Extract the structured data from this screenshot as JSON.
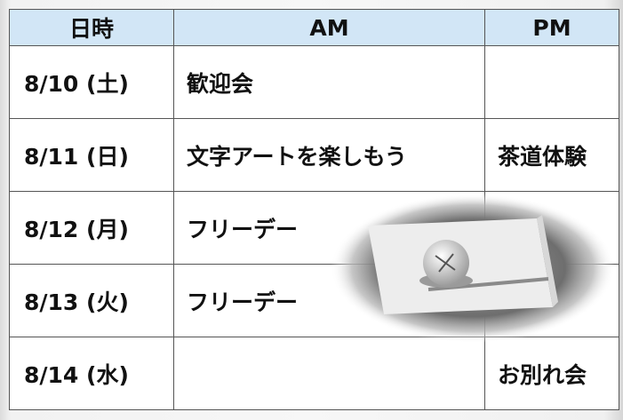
{
  "table": {
    "header": [
      "日時",
      "AM",
      "PM"
    ],
    "rows": [
      {
        "date": "8/10 (土)",
        "am": "歓迎会"
      },
      {
        "date": "8/11 (日)",
        "am": "文字アートを楽しもう",
        "pm": "茶道体験"
      },
      {
        "date": "8/12 (月)",
        "am": "フリーデー"
      },
      {
        "date": "8/13 (火)",
        "am": "フリーデー"
      },
      {
        "date": "8/14 (水)",
        "pm": "お別れ会"
      }
    ]
  }
}
